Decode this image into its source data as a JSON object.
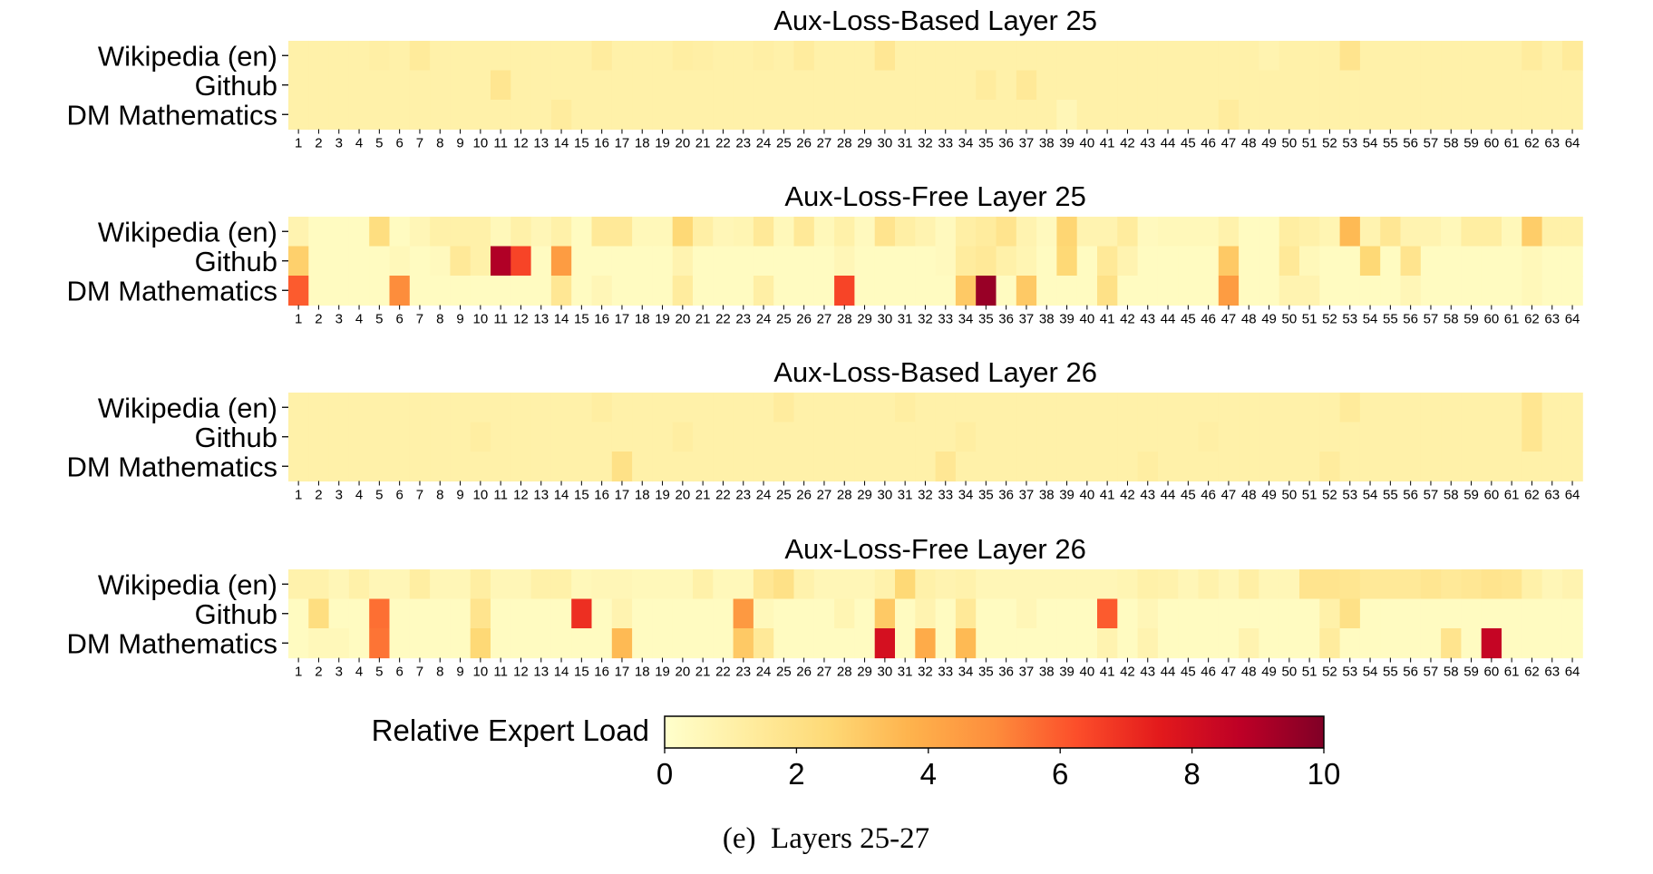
{
  "chart_data": {
    "type": "heatmap",
    "experts": [
      "1",
      "2",
      "3",
      "4",
      "5",
      "6",
      "7",
      "8",
      "9",
      "10",
      "11",
      "12",
      "13",
      "14",
      "15",
      "16",
      "17",
      "18",
      "19",
      "20",
      "21",
      "22",
      "23",
      "24",
      "25",
      "26",
      "27",
      "28",
      "29",
      "30",
      "31",
      "32",
      "33",
      "34",
      "35",
      "36",
      "37",
      "38",
      "39",
      "40",
      "41",
      "42",
      "43",
      "44",
      "45",
      "46",
      "47",
      "48",
      "49",
      "50",
      "51",
      "52",
      "53",
      "54",
      "55",
      "56",
      "57",
      "58",
      "59",
      "60",
      "61",
      "62",
      "63",
      "64"
    ],
    "rows": [
      "Wikipedia (en)",
      "Github",
      "DM Mathematics"
    ],
    "colorbar": {
      "label": "Relative Expert Load",
      "range": [
        0,
        10
      ],
      "ticks": [
        "0",
        "2",
        "4",
        "6",
        "8",
        "10"
      ],
      "colormap": "YlOrRd",
      "stops": [
        "#ffffcc",
        "#ffeda0",
        "#fed976",
        "#feb24c",
        "#fd8d3c",
        "#fc4e2a",
        "#e31a1c",
        "#bd0026",
        "#800026"
      ]
    },
    "caption": "(e)  Layers 25-27",
    "panels": [
      {
        "title": "Aux-Loss-Based Layer 25",
        "values": [
          [
            1.0,
            1.0,
            1.0,
            1.0,
            1.1,
            1.0,
            1.4,
            1.0,
            1.0,
            1.0,
            1.0,
            1.0,
            1.0,
            1.0,
            1.0,
            1.3,
            1.0,
            1.0,
            1.0,
            1.2,
            1.1,
            1.0,
            1.0,
            1.1,
            1.0,
            1.3,
            1.0,
            1.0,
            1.0,
            1.6,
            1.0,
            1.0,
            1.0,
            1.0,
            1.0,
            1.0,
            1.0,
            1.0,
            1.0,
            1.0,
            1.0,
            1.0,
            1.0,
            1.0,
            1.0,
            1.0,
            1.0,
            1.0,
            0.8,
            1.0,
            1.0,
            1.0,
            1.8,
            1.0,
            1.0,
            1.0,
            1.0,
            1.0,
            1.0,
            1.0,
            1.0,
            1.3,
            1.0,
            1.4
          ],
          [
            1.0,
            1.0,
            1.0,
            1.0,
            1.0,
            1.0,
            1.0,
            1.0,
            1.0,
            1.0,
            1.7,
            1.0,
            1.0,
            1.0,
            1.0,
            1.0,
            1.0,
            1.0,
            1.0,
            1.0,
            1.0,
            1.0,
            1.0,
            1.0,
            1.0,
            1.0,
            1.0,
            1.0,
            1.0,
            1.0,
            1.0,
            1.0,
            1.0,
            1.0,
            1.3,
            1.0,
            1.5,
            1.0,
            1.0,
            1.0,
            1.0,
            1.0,
            1.0,
            1.0,
            1.0,
            1.0,
            1.0,
            1.0,
            1.0,
            1.0,
            1.0,
            1.0,
            1.0,
            1.0,
            1.0,
            1.0,
            1.0,
            1.0,
            1.0,
            1.0,
            1.0,
            1.0,
            1.0,
            1.0
          ],
          [
            1.0,
            1.0,
            1.0,
            1.0,
            1.0,
            1.0,
            1.0,
            1.0,
            1.0,
            1.0,
            1.0,
            1.0,
            1.0,
            1.3,
            1.0,
            1.0,
            1.0,
            1.0,
            1.0,
            1.0,
            1.0,
            1.0,
            1.0,
            1.0,
            1.0,
            1.0,
            1.0,
            1.0,
            1.0,
            1.0,
            1.0,
            1.0,
            1.0,
            1.0,
            1.0,
            1.0,
            1.0,
            1.0,
            0.6,
            1.0,
            1.0,
            1.0,
            1.0,
            1.0,
            1.0,
            1.0,
            1.3,
            1.0,
            1.0,
            1.0,
            1.0,
            1.0,
            1.0,
            1.0,
            1.0,
            1.0,
            1.0,
            1.0,
            1.0,
            1.0,
            1.0,
            1.0,
            1.0,
            1.0
          ]
        ]
      },
      {
        "title": "Aux-Loss-Free Layer 25",
        "values": [
          [
            0.8,
            0.3,
            0.3,
            0.3,
            2.2,
            0.3,
            0.6,
            1.0,
            1.0,
            1.0,
            0.5,
            1.0,
            0.6,
            1.0,
            0.3,
            1.5,
            1.5,
            0.5,
            0.5,
            2.5,
            1.1,
            0.6,
            0.7,
            1.5,
            0.5,
            1.5,
            0.5,
            1.0,
            0.4,
            1.8,
            1.1,
            0.8,
            0.4,
            1.1,
            1.3,
            1.8,
            0.8,
            0.4,
            2.6,
            0.8,
            0.8,
            1.3,
            0.4,
            0.5,
            0.5,
            0.5,
            0.9,
            0.3,
            0.3,
            1.2,
            1.0,
            0.7,
            3.5,
            0.8,
            1.6,
            0.8,
            0.8,
            0.5,
            1.2,
            1.2,
            0.5,
            2.9,
            1.0,
            1.0
          ],
          [
            2.8,
            0.3,
            0.3,
            0.3,
            0.3,
            0.5,
            0.3,
            0.4,
            1.5,
            1.0,
            9.0,
            6.5,
            0.3,
            4.5,
            0.3,
            0.3,
            0.3,
            0.3,
            0.3,
            0.8,
            0.3,
            0.3,
            0.3,
            0.3,
            0.3,
            0.3,
            0.3,
            0.6,
            0.3,
            0.3,
            0.3,
            0.3,
            0.4,
            1.3,
            1.5,
            1.0,
            0.7,
            0.3,
            2.5,
            0.3,
            1.5,
            0.8,
            0.3,
            0.3,
            0.3,
            0.3,
            3.0,
            0.3,
            0.3,
            1.5,
            0.5,
            0.3,
            0.3,
            2.5,
            0.3,
            1.8,
            0.3,
            0.3,
            0.3,
            0.3,
            0.3,
            0.5,
            0.3,
            0.3
          ],
          [
            6.0,
            0.3,
            0.3,
            0.3,
            0.3,
            5.0,
            0.3,
            0.3,
            0.3,
            0.3,
            0.3,
            0.3,
            0.3,
            1.6,
            0.3,
            0.6,
            0.3,
            0.3,
            0.3,
            1.3,
            0.3,
            0.3,
            0.3,
            1.1,
            0.3,
            0.3,
            0.3,
            6.5,
            0.3,
            0.3,
            0.3,
            0.3,
            0.3,
            3.0,
            9.5,
            0.3,
            3.0,
            0.3,
            0.3,
            0.3,
            2.0,
            0.3,
            0.3,
            0.3,
            0.3,
            0.3,
            4.5,
            0.3,
            0.3,
            0.8,
            0.8,
            0.3,
            0.3,
            0.3,
            0.3,
            0.6,
            0.3,
            0.3,
            0.3,
            0.3,
            0.3,
            0.5,
            0.3,
            0.3
          ]
        ]
      },
      {
        "title": "Aux-Loss-Based Layer 26",
        "values": [
          [
            1.0,
            1.0,
            1.0,
            1.0,
            1.0,
            1.0,
            1.0,
            1.0,
            1.0,
            1.0,
            1.0,
            1.0,
            1.0,
            1.0,
            1.0,
            1.2,
            1.0,
            1.0,
            1.0,
            1.0,
            1.0,
            1.0,
            1.0,
            1.0,
            1.3,
            1.0,
            1.0,
            1.0,
            1.0,
            1.0,
            1.2,
            1.0,
            1.0,
            1.0,
            1.0,
            1.0,
            1.0,
            1.0,
            1.0,
            1.0,
            1.0,
            1.0,
            1.0,
            1.0,
            1.0,
            1.0,
            1.0,
            1.0,
            1.0,
            1.0,
            1.0,
            1.0,
            1.4,
            1.0,
            1.0,
            1.0,
            1.0,
            1.0,
            1.0,
            1.0,
            1.0,
            1.7,
            1.0,
            1.0
          ],
          [
            1.0,
            1.0,
            1.0,
            1.0,
            1.0,
            1.0,
            1.0,
            1.0,
            1.0,
            1.2,
            1.0,
            1.0,
            1.0,
            1.0,
            1.0,
            1.0,
            1.0,
            1.0,
            1.0,
            1.2,
            1.0,
            1.0,
            1.0,
            1.0,
            1.0,
            1.0,
            1.0,
            1.0,
            1.0,
            1.0,
            1.0,
            1.0,
            1.0,
            1.2,
            1.0,
            1.0,
            1.0,
            1.0,
            1.0,
            1.0,
            1.0,
            1.0,
            1.0,
            1.0,
            1.0,
            1.1,
            1.0,
            1.0,
            1.0,
            1.0,
            1.0,
            1.0,
            1.0,
            1.0,
            1.0,
            1.0,
            1.0,
            1.0,
            1.0,
            1.0,
            1.0,
            1.7,
            1.0,
            1.0
          ],
          [
            1.0,
            1.0,
            1.0,
            1.0,
            1.0,
            1.0,
            1.0,
            1.0,
            1.0,
            1.0,
            1.0,
            1.0,
            1.0,
            1.0,
            1.0,
            1.0,
            2.0,
            1.0,
            1.0,
            1.0,
            1.0,
            1.0,
            1.0,
            1.0,
            1.0,
            1.0,
            1.0,
            1.0,
            1.0,
            1.0,
            1.0,
            1.0,
            1.6,
            1.0,
            1.0,
            1.0,
            1.0,
            1.0,
            1.0,
            1.0,
            1.0,
            1.0,
            1.2,
            1.0,
            1.0,
            1.0,
            1.0,
            1.0,
            1.0,
            1.0,
            1.0,
            1.3,
            1.0,
            1.0,
            1.0,
            1.0,
            1.0,
            1.0,
            1.0,
            1.0,
            1.0,
            1.0,
            1.0,
            1.0
          ]
        ]
      },
      {
        "title": "Aux-Loss-Free Layer 26",
        "values": [
          [
            0.9,
            0.9,
            0.6,
            1.0,
            0.6,
            0.6,
            1.2,
            0.6,
            0.6,
            1.2,
            0.6,
            0.6,
            1.0,
            1.0,
            0.5,
            0.6,
            0.6,
            0.5,
            0.5,
            0.5,
            1.0,
            0.5,
            0.5,
            1.6,
            2.0,
            0.9,
            0.6,
            0.6,
            0.6,
            0.9,
            2.5,
            1.0,
            0.8,
            0.9,
            0.6,
            0.6,
            0.6,
            0.6,
            0.6,
            0.6,
            0.6,
            0.7,
            1.0,
            0.9,
            0.6,
            0.9,
            0.6,
            1.1,
            0.6,
            0.6,
            1.8,
            1.8,
            1.7,
            1.5,
            1.5,
            1.5,
            1.7,
            1.5,
            1.6,
            1.8,
            1.7,
            1.0,
            0.6,
            0.8
          ],
          [
            0.3,
            2.2,
            0.3,
            0.3,
            5.6,
            0.3,
            0.3,
            0.3,
            0.3,
            1.8,
            0.3,
            0.3,
            0.3,
            0.3,
            7.0,
            0.3,
            0.8,
            0.3,
            0.3,
            0.3,
            0.3,
            0.3,
            4.6,
            0.5,
            0.3,
            0.3,
            0.3,
            0.7,
            0.3,
            3.0,
            0.3,
            0.8,
            0.3,
            1.5,
            0.3,
            0.3,
            0.6,
            0.3,
            0.3,
            0.3,
            6.0,
            0.3,
            0.6,
            0.3,
            0.3,
            0.3,
            0.3,
            0.3,
            0.3,
            0.3,
            0.3,
            1.0,
            2.0,
            0.3,
            0.3,
            0.3,
            0.3,
            0.3,
            0.3,
            0.3,
            0.3,
            0.3,
            0.3,
            0.3
          ],
          [
            0.3,
            0.5,
            0.5,
            0.3,
            5.5,
            0.3,
            0.3,
            0.3,
            0.3,
            2.5,
            0.3,
            0.3,
            0.3,
            0.3,
            0.3,
            0.3,
            3.5,
            0.3,
            0.3,
            0.3,
            0.3,
            0.3,
            3.0,
            1.5,
            0.3,
            0.3,
            0.3,
            0.3,
            0.3,
            8.0,
            0.3,
            4.0,
            0.3,
            3.5,
            0.3,
            0.3,
            0.3,
            0.3,
            0.3,
            0.3,
            0.8,
            0.3,
            0.8,
            0.3,
            0.3,
            0.3,
            0.3,
            0.8,
            0.3,
            0.3,
            0.3,
            1.3,
            0.3,
            0.3,
            0.3,
            0.3,
            0.3,
            1.8,
            0.3,
            8.5,
            0.3,
            0.3,
            0.3,
            0.3
          ]
        ]
      }
    ]
  }
}
